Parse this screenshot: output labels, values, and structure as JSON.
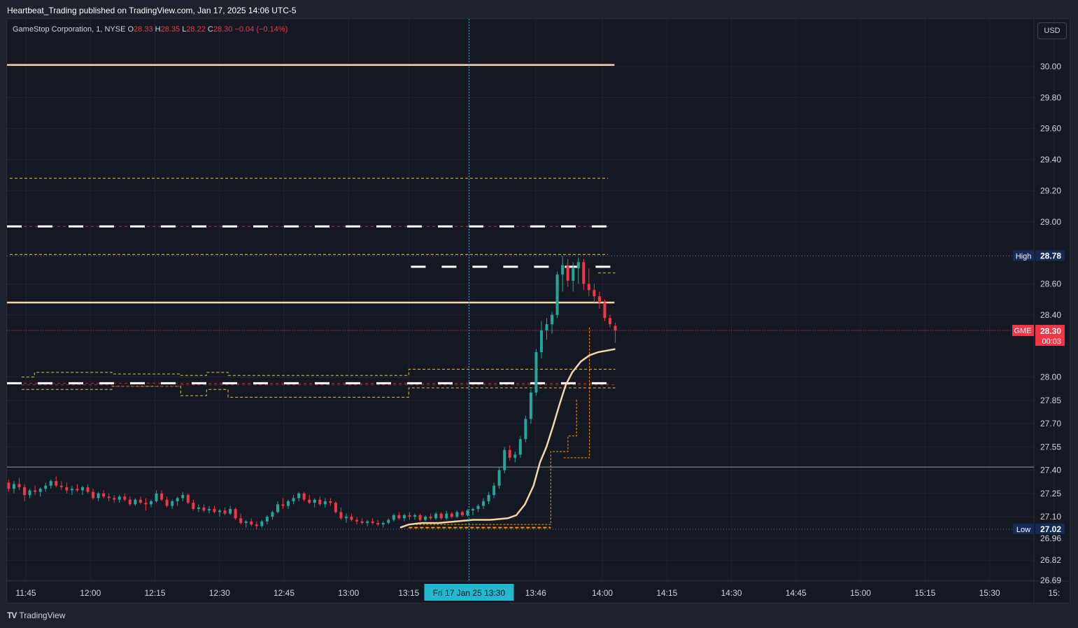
{
  "publisher": "Heartbeat_Trading published on TradingView.com, Jan 17, 2025 14:06 UTC-5",
  "legend": {
    "symbol": "GameStop Corporation, 1, NYSE",
    "o_label": "O",
    "o": "28.33",
    "h_label": "H",
    "h": "28.35",
    "l_label": "L",
    "l": "28.22",
    "c_label": "C",
    "c": "28.30",
    "change": "−0.04 (−0.14%)"
  },
  "currency": "USD",
  "footer": {
    "brand": "TradingView",
    "logo": "TV"
  },
  "colors": {
    "up": "#26a69a",
    "down": "#f23645",
    "vwap": "#f5d6a6",
    "yellow_dash": "#e8c22d",
    "white_dash": "#ffffff",
    "red_dash": "#c62828",
    "crosshair": "#22b8cf",
    "ticker": "#f23645",
    "hl_label": "#172a55"
  },
  "chart_data": {
    "type": "candlestick",
    "symbol": "GME",
    "interval": "1",
    "ylim": [
      26.65,
      30.1
    ],
    "y_ticks": [
      "30.00",
      "29.80",
      "29.60",
      "29.40",
      "29.20",
      "29.00",
      "28.60",
      "28.40",
      "28.00",
      "27.85",
      "27.70",
      "27.55",
      "27.40",
      "27.25",
      "27.10",
      "26.96",
      "26.82",
      "26.69"
    ],
    "x_ticks": [
      {
        "label": "11:45",
        "t": 0
      },
      {
        "label": "12:00",
        "t": 15
      },
      {
        "label": "12:15",
        "t": 30
      },
      {
        "label": "12:30",
        "t": 45
      },
      {
        "label": "12:45",
        "t": 60
      },
      {
        "label": "13:00",
        "t": 75
      },
      {
        "label": "13:15",
        "t": 89
      },
      {
        "label": "13:46",
        "t": 118.5
      },
      {
        "label": "14:00",
        "t": 134
      },
      {
        "label": "14:15",
        "t": 149
      },
      {
        "label": "14:30",
        "t": 164
      },
      {
        "label": "14:45",
        "t": 179
      },
      {
        "label": "15:00",
        "t": 194
      },
      {
        "label": "15:15",
        "t": 209
      },
      {
        "label": "15:30",
        "t": 224
      },
      {
        "label": "15:",
        "t": 239
      }
    ],
    "crosshair": {
      "label": "Fri 17 Jan 25   13:30",
      "t": 103
    },
    "high": {
      "label": "High",
      "value": "28.78"
    },
    "low": {
      "label": "Low",
      "value": "27.02"
    },
    "last": {
      "ticker": "GME",
      "value": "28.30",
      "countdown": "00:03"
    },
    "horizontal_levels": [
      {
        "name": "vwap-band-upper",
        "value": 30.01,
        "style": "vwap"
      },
      {
        "name": "yellow-level-1",
        "value": 29.28,
        "style": "yellow"
      },
      {
        "name": "white-level-1",
        "value": 28.97,
        "style": "white"
      },
      {
        "name": "yellow-level-2",
        "value": 28.79,
        "style": "yellow"
      },
      {
        "name": "vwap-band-mid",
        "value": 28.48,
        "style": "vwap"
      },
      {
        "name": "white-level-2",
        "value": 27.96,
        "style": "white"
      },
      {
        "name": "price-line-current",
        "value": 28.3,
        "style": "reddot"
      },
      {
        "name": "line-27-42",
        "value": 27.42,
        "style": "grey"
      }
    ],
    "candles": [
      [
        27.32,
        27.34,
        27.26,
        27.28
      ],
      [
        27.28,
        27.33,
        27.25,
        27.31
      ],
      [
        27.31,
        27.35,
        27.27,
        27.29
      ],
      [
        27.29,
        27.31,
        27.2,
        27.24
      ],
      [
        27.24,
        27.28,
        27.22,
        27.27
      ],
      [
        27.27,
        27.3,
        27.24,
        27.26
      ],
      [
        27.26,
        27.29,
        27.23,
        27.28
      ],
      [
        27.28,
        27.32,
        27.26,
        27.3
      ],
      [
        27.3,
        27.34,
        27.28,
        27.33
      ],
      [
        27.33,
        27.36,
        27.29,
        27.3
      ],
      [
        27.3,
        27.33,
        27.27,
        27.29
      ],
      [
        27.29,
        27.32,
        27.25,
        27.27
      ],
      [
        27.27,
        27.3,
        27.24,
        27.28
      ],
      [
        27.28,
        27.31,
        27.26,
        27.27
      ],
      [
        27.27,
        27.3,
        27.24,
        27.29
      ],
      [
        27.29,
        27.31,
        27.25,
        27.26
      ],
      [
        27.26,
        27.28,
        27.21,
        27.22
      ],
      [
        27.22,
        27.26,
        27.2,
        27.25
      ],
      [
        27.25,
        27.27,
        27.22,
        27.23
      ],
      [
        27.23,
        27.25,
        27.2,
        27.22
      ],
      [
        27.22,
        27.24,
        27.19,
        27.21
      ],
      [
        27.21,
        27.24,
        27.19,
        27.23
      ],
      [
        27.23,
        27.25,
        27.2,
        27.21
      ],
      [
        27.21,
        27.23,
        27.17,
        27.18
      ],
      [
        27.18,
        27.22,
        27.17,
        27.21
      ],
      [
        27.21,
        27.23,
        27.18,
        27.19
      ],
      [
        27.19,
        27.22,
        27.14,
        27.18
      ],
      [
        27.18,
        27.21,
        27.16,
        27.2
      ],
      [
        27.2,
        27.27,
        27.19,
        27.25
      ],
      [
        27.25,
        27.27,
        27.2,
        27.21
      ],
      [
        27.21,
        27.23,
        27.16,
        27.17
      ],
      [
        27.17,
        27.21,
        27.15,
        27.2
      ],
      [
        27.2,
        27.23,
        27.17,
        27.22
      ],
      [
        27.22,
        27.26,
        27.2,
        27.24
      ],
      [
        27.24,
        27.25,
        27.18,
        27.19
      ],
      [
        27.19,
        27.21,
        27.14,
        27.15
      ],
      [
        27.15,
        27.18,
        27.13,
        27.16
      ],
      [
        27.16,
        27.18,
        27.13,
        27.14
      ],
      [
        27.14,
        27.17,
        27.12,
        27.15
      ],
      [
        27.15,
        27.17,
        27.12,
        27.13
      ],
      [
        27.13,
        27.15,
        27.1,
        27.14
      ],
      [
        27.14,
        27.16,
        27.11,
        27.12
      ],
      [
        27.12,
        27.17,
        27.11,
        27.15
      ],
      [
        27.15,
        27.16,
        27.08,
        27.09
      ],
      [
        27.09,
        27.12,
        27.05,
        27.06
      ],
      [
        27.06,
        27.08,
        27.03,
        27.07
      ],
      [
        27.07,
        27.09,
        27.04,
        27.05
      ],
      [
        27.05,
        27.07,
        27.02,
        27.04
      ],
      [
        27.04,
        27.08,
        27.03,
        27.07
      ],
      [
        27.07,
        27.11,
        27.05,
        27.1
      ],
      [
        27.1,
        27.14,
        27.08,
        27.13
      ],
      [
        27.13,
        27.2,
        27.12,
        27.18
      ],
      [
        27.18,
        27.22,
        27.15,
        27.17
      ],
      [
        27.17,
        27.21,
        27.15,
        27.2
      ],
      [
        27.2,
        27.24,
        27.18,
        27.22
      ],
      [
        27.22,
        27.26,
        27.2,
        27.25
      ],
      [
        27.25,
        27.26,
        27.2,
        27.21
      ],
      [
        27.21,
        27.24,
        27.18,
        27.19
      ],
      [
        27.19,
        27.22,
        27.16,
        27.21
      ],
      [
        27.21,
        27.23,
        27.17,
        27.18
      ],
      [
        27.18,
        27.22,
        27.16,
        27.2
      ],
      [
        27.2,
        27.22,
        27.17,
        27.19
      ],
      [
        27.19,
        27.2,
        27.12,
        27.13
      ],
      [
        27.13,
        27.16,
        27.08,
        27.09
      ],
      [
        27.09,
        27.12,
        27.06,
        27.1
      ],
      [
        27.1,
        27.12,
        27.07,
        27.08
      ],
      [
        27.08,
        27.1,
        27.05,
        27.07
      ],
      [
        27.07,
        27.09,
        27.05,
        27.06
      ],
      [
        27.06,
        27.08,
        27.04,
        27.07
      ],
      [
        27.07,
        27.09,
        27.05,
        27.06
      ],
      [
        27.06,
        27.08,
        27.04,
        27.05
      ],
      [
        27.05,
        27.07,
        27.03,
        27.06
      ],
      [
        27.06,
        27.09,
        27.05,
        27.08
      ],
      [
        27.08,
        27.12,
        27.07,
        27.11
      ],
      [
        27.11,
        27.13,
        27.08,
        27.09
      ],
      [
        27.09,
        27.12,
        27.07,
        27.11
      ],
      [
        27.11,
        27.13,
        27.08,
        27.1
      ],
      [
        27.1,
        27.12,
        27.08,
        27.11
      ],
      [
        27.11,
        27.12,
        27.07,
        27.08
      ],
      [
        27.08,
        27.11,
        27.07,
        27.1
      ],
      [
        27.1,
        27.12,
        27.08,
        27.09
      ],
      [
        27.09,
        27.13,
        27.08,
        27.12
      ],
      [
        27.12,
        27.13,
        27.08,
        27.09
      ],
      [
        27.09,
        27.14,
        27.08,
        27.12
      ],
      [
        27.12,
        27.13,
        27.09,
        27.1
      ],
      [
        27.1,
        27.14,
        27.09,
        27.13
      ],
      [
        27.13,
        27.14,
        27.1,
        27.11
      ],
      [
        27.11,
        27.15,
        27.1,
        27.14
      ],
      [
        27.14,
        27.16,
        27.11,
        27.15
      ],
      [
        27.15,
        27.18,
        27.13,
        27.17
      ],
      [
        27.17,
        27.22,
        27.15,
        27.2
      ],
      [
        27.2,
        27.26,
        27.18,
        27.24
      ],
      [
        27.24,
        27.32,
        27.22,
        27.3
      ],
      [
        27.3,
        27.42,
        27.28,
        27.4
      ],
      [
        27.4,
        27.55,
        27.38,
        27.53
      ],
      [
        27.53,
        27.56,
        27.46,
        27.48
      ],
      [
        27.48,
        27.52,
        27.45,
        27.5
      ],
      [
        27.5,
        27.62,
        27.48,
        27.6
      ],
      [
        27.6,
        27.75,
        27.58,
        27.73
      ],
      [
        27.73,
        27.92,
        27.7,
        27.9
      ],
      [
        27.9,
        28.18,
        27.88,
        28.16
      ],
      [
        28.16,
        28.36,
        28.12,
        28.3
      ],
      [
        28.3,
        28.38,
        28.24,
        28.34
      ],
      [
        28.34,
        28.42,
        28.28,
        28.4
      ],
      [
        28.4,
        28.68,
        28.38,
        28.66
      ],
      [
        28.66,
        28.78,
        28.55,
        28.72
      ],
      [
        28.72,
        28.76,
        28.58,
        28.62
      ],
      [
        28.62,
        28.74,
        28.55,
        28.7
      ],
      [
        28.7,
        28.77,
        28.6,
        28.74
      ],
      [
        28.74,
        28.76,
        28.56,
        28.6
      ],
      [
        28.6,
        28.7,
        28.52,
        28.56
      ],
      [
        28.56,
        28.6,
        28.48,
        28.52
      ],
      [
        28.52,
        28.55,
        28.44,
        28.48
      ],
      [
        28.48,
        28.5,
        28.36,
        28.38
      ],
      [
        28.38,
        28.4,
        28.32,
        28.34
      ],
      [
        28.33,
        28.35,
        28.22,
        28.3
      ]
    ],
    "vwap_line": [
      [
        87,
        27.03
      ],
      [
        89,
        27.05
      ],
      [
        92,
        27.06
      ],
      [
        96,
        27.06
      ],
      [
        100,
        27.07
      ],
      [
        104,
        27.08
      ],
      [
        108,
        27.08
      ],
      [
        112,
        27.09
      ],
      [
        114,
        27.11
      ],
      [
        116,
        27.18
      ],
      [
        118,
        27.3
      ],
      [
        119.5,
        27.45
      ],
      [
        121,
        27.55
      ],
      [
        122.5,
        27.68
      ],
      [
        124,
        27.82
      ],
      [
        125.5,
        27.95
      ],
      [
        127,
        28.03
      ],
      [
        129,
        28.1
      ],
      [
        131,
        28.14
      ],
      [
        133,
        28.16
      ],
      [
        135,
        28.17
      ],
      [
        137,
        28.18
      ]
    ],
    "yellow_step_upper": [
      [
        -1,
        28.0
      ],
      [
        2,
        28.03
      ],
      [
        20,
        28.02
      ],
      [
        36,
        28.01
      ],
      [
        42,
        28.03
      ],
      [
        47,
        28.01
      ],
      [
        72,
        28.01
      ],
      [
        89,
        28.05
      ],
      [
        137,
        28.05
      ]
    ],
    "yellow_step_lower": [
      [
        -1,
        27.92
      ],
      [
        2,
        27.92
      ],
      [
        20,
        27.94
      ],
      [
        36,
        27.88
      ],
      [
        42,
        27.92
      ],
      [
        47,
        27.87
      ],
      [
        72,
        27.87
      ],
      [
        89,
        27.93
      ],
      [
        137,
        27.93
      ]
    ],
    "red_dash_band": [
      [
        -1,
        27.95
      ],
      [
        20,
        27.94
      ],
      [
        36,
        27.95
      ],
      [
        42,
        27.95
      ],
      [
        72,
        27.95
      ],
      [
        89,
        27.95
      ],
      [
        137,
        27.95
      ]
    ]
  }
}
